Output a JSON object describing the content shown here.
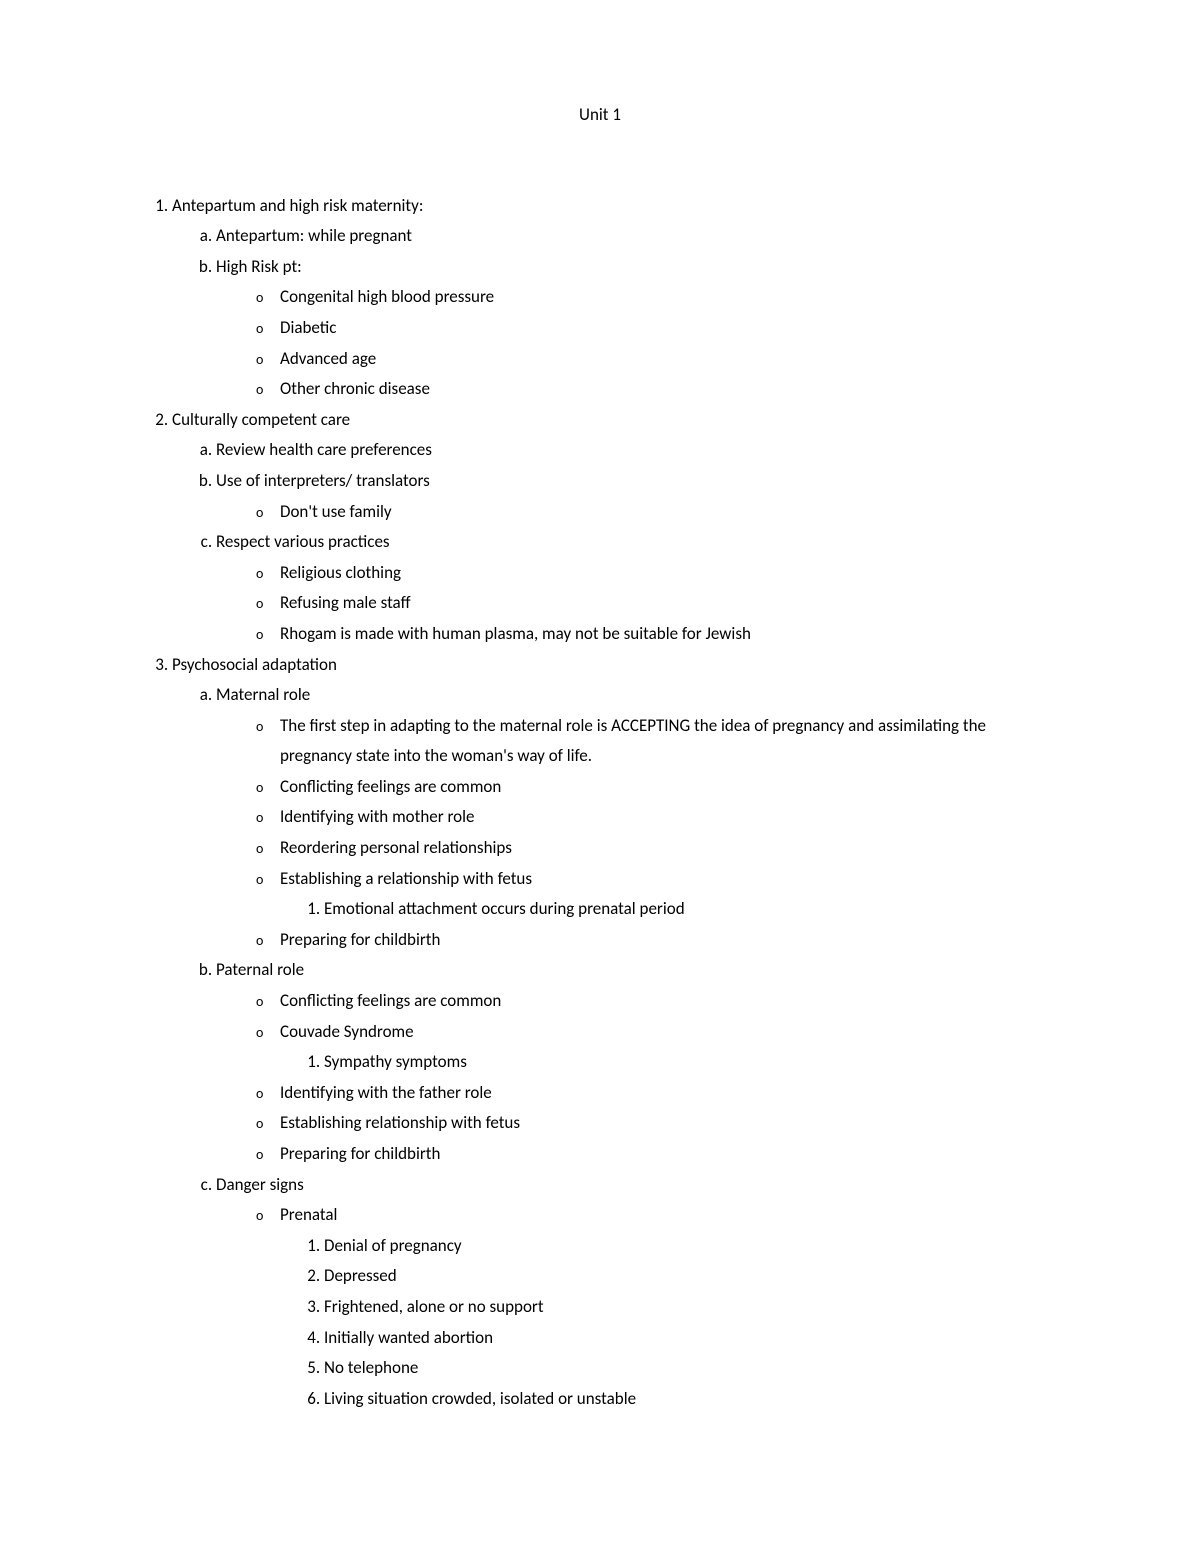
{
  "title": "Unit 1",
  "items": [
    {
      "text": "Antepartum and high risk maternity:",
      "children": [
        {
          "text": "Antepartum: while pregnant"
        },
        {
          "text": "High Risk pt:",
          "bullets": [
            {
              "text": "Congenital high blood pressure"
            },
            {
              "text": "Diabetic"
            },
            {
              "text": "Advanced age"
            },
            {
              "text": "Other chronic disease"
            }
          ]
        }
      ]
    },
    {
      "text": "Culturally competent care",
      "children": [
        {
          "text": "Review health care preferences"
        },
        {
          "text": "Use of interpreters/ translators",
          "bullets": [
            {
              "text": "Don't use family"
            }
          ]
        },
        {
          "text": "Respect various practices",
          "bullets": [
            {
              "text": "Religious clothing"
            },
            {
              "text": "Refusing male staff"
            },
            {
              "text": "Rhogam is made with human plasma, may not be suitable for Jewish"
            }
          ]
        }
      ]
    },
    {
      "text": "Psychosocial adaptation",
      "children": [
        {
          "text": "Maternal role",
          "bullets": [
            {
              "text": "The first step in adapting to the maternal role is ACCEPTING the idea of pregnancy and assimilating the pregnancy state into the woman's way of life."
            },
            {
              "text": "Conflicting feelings are common"
            },
            {
              "text": "Identifying with mother role"
            },
            {
              "text": "Reordering personal relationships"
            },
            {
              "text": "Establishing a relationship with fetus",
              "subnum": [
                {
                  "text": "Emotional attachment occurs during prenatal period"
                }
              ]
            },
            {
              "text": "Preparing for childbirth"
            }
          ]
        },
        {
          "text": "Paternal role",
          "bullets": [
            {
              "text": "Conflicting feelings are common"
            },
            {
              "text": "Couvade Syndrome",
              "subnum": [
                {
                  "text": "Sympathy symptoms"
                }
              ]
            },
            {
              "text": "Identifying with the father role"
            },
            {
              "text": "Establishing relationship with fetus"
            },
            {
              "text": "Preparing for childbirth"
            }
          ]
        },
        {
          "text": "Danger signs",
          "bullets": [
            {
              "text": "Prenatal",
              "subnum": [
                {
                  "text": "Denial of pregnancy"
                },
                {
                  "text": "Depressed"
                },
                {
                  "text": "Frightened, alone or no support"
                },
                {
                  "text": "Initially wanted abortion"
                },
                {
                  "text": "No telephone"
                },
                {
                  "text": "Living situation crowded, isolated or unstable"
                }
              ]
            }
          ]
        }
      ]
    }
  ]
}
